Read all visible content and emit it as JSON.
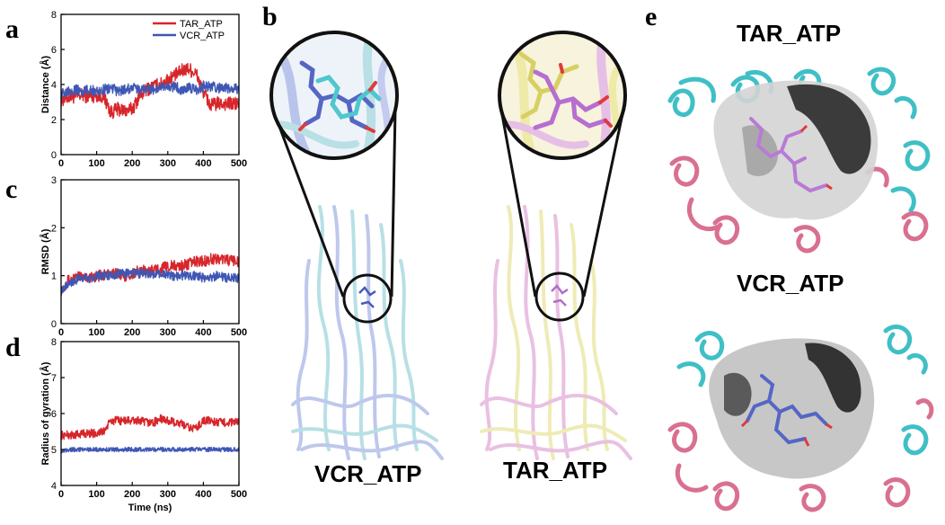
{
  "panels": {
    "a": "a",
    "b": "b",
    "c": "c",
    "d": "d",
    "e": "e"
  },
  "structures": {
    "b_left_label": "VCR_ATP",
    "b_right_label": "TAR_ATP",
    "e_top_label": "TAR_ATP",
    "e_bottom_label": "VCR_ATP"
  },
  "colors": {
    "TAR": "#d7262b",
    "VCR": "#3f57b4",
    "cyan": "#3fbfc6",
    "pink": "#d9708f",
    "violet": "#b87ad6",
    "yellow": "#eeeaa0",
    "surface": "#8a8a8a"
  },
  "chart_data": [
    {
      "type": "line",
      "panel": "a",
      "ylabel": "Distance (Å)",
      "xlabel": "",
      "xlim": [
        0,
        500
      ],
      "ylim": [
        0,
        8
      ],
      "xticks": [
        0,
        100,
        200,
        300,
        400,
        500
      ],
      "yticks": [
        0,
        2,
        4,
        6,
        8
      ],
      "legend": "top-right",
      "series": [
        {
          "name": "TAR_ATP",
          "color": "#d7262b",
          "x": [
            0,
            20,
            40,
            60,
            80,
            100,
            120,
            140,
            160,
            180,
            200,
            220,
            240,
            260,
            280,
            300,
            320,
            340,
            360,
            380,
            400,
            420,
            440,
            460,
            480,
            500
          ],
          "y": [
            3.1,
            3.3,
            3.3,
            3.4,
            3.3,
            3.4,
            3.3,
            2.4,
            2.6,
            2.5,
            2.6,
            3.3,
            3.7,
            3.9,
            4.0,
            4.3,
            4.5,
            4.8,
            4.9,
            4.6,
            3.6,
            2.8,
            2.9,
            2.9,
            2.9,
            2.9
          ],
          "noise": 0.4
        },
        {
          "name": "VCR_ATP",
          "color": "#3f57b4",
          "x": [
            0,
            20,
            40,
            60,
            80,
            100,
            120,
            140,
            160,
            180,
            200,
            220,
            240,
            260,
            280,
            300,
            320,
            340,
            360,
            380,
            400,
            420,
            440,
            460,
            480,
            500
          ],
          "y": [
            3.4,
            3.7,
            3.7,
            3.6,
            3.7,
            3.6,
            3.7,
            3.8,
            3.6,
            3.7,
            3.8,
            3.7,
            3.8,
            3.7,
            3.8,
            3.8,
            3.9,
            3.7,
            3.8,
            3.7,
            3.9,
            3.9,
            3.8,
            3.8,
            3.7,
            3.8
          ],
          "noise": 0.3
        }
      ]
    },
    {
      "type": "line",
      "panel": "c",
      "ylabel": "RMSD (Å)",
      "xlabel": "",
      "xlim": [
        0,
        500
      ],
      "ylim": [
        0,
        3
      ],
      "xticks": [
        0,
        100,
        200,
        300,
        400,
        500
      ],
      "yticks": [
        0,
        1,
        2,
        3
      ],
      "series": [
        {
          "name": "TAR_ATP",
          "color": "#d7262b",
          "x": [
            0,
            20,
            40,
            60,
            80,
            100,
            120,
            140,
            160,
            180,
            200,
            220,
            240,
            260,
            280,
            300,
            320,
            340,
            360,
            380,
            400,
            420,
            440,
            460,
            480,
            500
          ],
          "y": [
            0.7,
            0.9,
            0.95,
            1.0,
            0.95,
            1.0,
            1.0,
            1.05,
            1.05,
            1.0,
            1.05,
            1.1,
            1.1,
            1.1,
            1.15,
            1.2,
            1.2,
            1.2,
            1.25,
            1.3,
            1.3,
            1.35,
            1.35,
            1.35,
            1.3,
            1.3
          ],
          "noise": 0.12
        },
        {
          "name": "VCR_ATP",
          "color": "#3f57b4",
          "x": [
            0,
            20,
            40,
            60,
            80,
            100,
            120,
            140,
            160,
            180,
            200,
            220,
            240,
            260,
            280,
            300,
            320,
            340,
            360,
            380,
            400,
            420,
            440,
            460,
            480,
            500
          ],
          "y": [
            0.7,
            0.85,
            0.9,
            0.95,
            0.95,
            1.0,
            1.0,
            1.0,
            1.05,
            1.05,
            1.05,
            1.05,
            1.05,
            1.0,
            1.05,
            1.0,
            1.0,
            1.0,
            1.0,
            1.0,
            0.95,
            0.95,
            1.0,
            0.95,
            0.95,
            0.95
          ],
          "noise": 0.1
        }
      ]
    },
    {
      "type": "line",
      "panel": "d",
      "ylabel": "Radius of gyration (Å)",
      "xlabel": "Time (ns)",
      "xlim": [
        0,
        500
      ],
      "ylim": [
        4,
        8
      ],
      "xticks": [
        0,
        100,
        200,
        300,
        400,
        500
      ],
      "yticks": [
        4,
        5,
        6,
        7,
        8
      ],
      "series": [
        {
          "name": "TAR_ATP",
          "color": "#d7262b",
          "x": [
            0,
            20,
            40,
            60,
            80,
            100,
            120,
            140,
            160,
            180,
            200,
            220,
            240,
            260,
            280,
            300,
            320,
            340,
            360,
            380,
            400,
            420,
            440,
            460,
            480,
            500
          ],
          "y": [
            5.4,
            5.4,
            5.4,
            5.45,
            5.45,
            5.45,
            5.5,
            5.8,
            5.8,
            5.8,
            5.8,
            5.8,
            5.75,
            5.75,
            5.85,
            5.8,
            5.75,
            5.7,
            5.6,
            5.6,
            5.8,
            5.8,
            5.75,
            5.75,
            5.75,
            5.75
          ],
          "noise": 0.12
        },
        {
          "name": "VCR_ATP",
          "color": "#3f57b4",
          "x": [
            0,
            20,
            40,
            60,
            80,
            100,
            120,
            140,
            160,
            180,
            200,
            220,
            240,
            260,
            280,
            300,
            320,
            340,
            360,
            380,
            400,
            420,
            440,
            460,
            480,
            500
          ],
          "y": [
            4.95,
            5.0,
            5.0,
            5.0,
            5.0,
            5.0,
            5.0,
            5.0,
            5.0,
            5.0,
            5.0,
            5.0,
            5.0,
            5.0,
            5.0,
            5.0,
            5.0,
            5.0,
            5.0,
            5.0,
            5.0,
            5.0,
            5.0,
            5.0,
            5.0,
            5.0
          ],
          "noise": 0.06
        }
      ]
    }
  ]
}
